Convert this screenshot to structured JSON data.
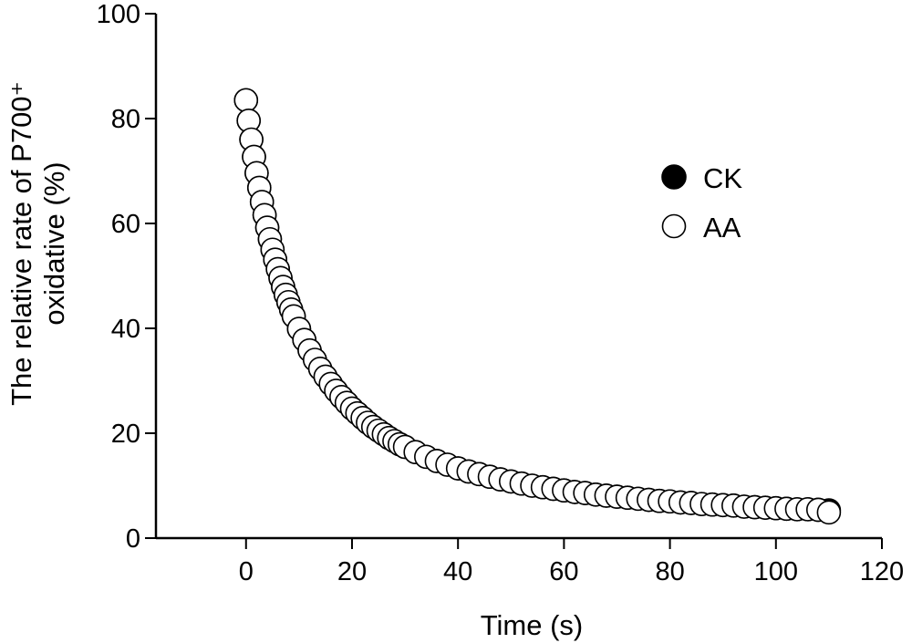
{
  "chart_data": {
    "type": "scatter",
    "title": "",
    "xlabel": "Time (s)",
    "ylabel_line1": "The relative rate of P700⁺",
    "ylabel_line2": "oxidative (%)",
    "xlim": [
      -17,
      120
    ],
    "ylim": [
      0,
      100
    ],
    "x_ticks": [
      0,
      20,
      40,
      60,
      80,
      100,
      120
    ],
    "y_ticks": [
      0,
      20,
      40,
      60,
      80,
      100
    ],
    "grid": false,
    "legend_position": "upper-right",
    "series": [
      {
        "name": "CK",
        "marker": "filled-circle",
        "color": "#000000",
        "x": [
          0,
          0.5,
          1,
          1.5,
          2,
          2.5,
          3,
          3.5,
          4,
          4.5,
          5,
          5.5,
          6,
          6.5,
          7,
          7.5,
          8,
          8.5,
          9,
          10,
          11,
          12,
          13,
          14,
          15,
          16,
          17,
          18,
          19,
          20,
          21,
          22,
          23,
          24,
          25,
          26,
          27,
          28,
          29,
          30,
          32,
          34,
          36,
          38,
          40,
          42,
          44,
          46,
          48,
          50,
          52,
          54,
          56,
          58,
          60,
          62,
          64,
          66,
          68,
          70,
          72,
          74,
          76,
          78,
          80,
          82,
          84,
          86,
          88,
          90,
          92,
          94,
          96,
          98,
          100,
          102,
          104,
          106,
          108,
          110
        ],
        "y": [
          83.5,
          79.6,
          76.0,
          72.7,
          69.6,
          66.8,
          64.1,
          61.6,
          59.2,
          57.0,
          55.0,
          53.1,
          51.3,
          49.6,
          47.9,
          46.4,
          45.0,
          43.6,
          42.3,
          39.9,
          37.8,
          35.8,
          34.0,
          32.3,
          30.8,
          29.4,
          28.1,
          26.9,
          25.8,
          24.7,
          23.8,
          22.9,
          22.0,
          21.2,
          20.5,
          19.8,
          19.1,
          18.5,
          17.9,
          17.4,
          16.4,
          15.5,
          14.7,
          14.0,
          13.3,
          12.7,
          12.2,
          11.7,
          11.2,
          10.8,
          10.4,
          10.0,
          9.7,
          9.4,
          9.1,
          8.8,
          8.6,
          8.3,
          8.1,
          7.9,
          7.7,
          7.5,
          7.3,
          7.1,
          7.0,
          6.8,
          6.7,
          6.5,
          6.4,
          6.3,
          6.2,
          6.0,
          5.9,
          5.8,
          5.7,
          5.6,
          5.5,
          5.5,
          5.4,
          5.3
        ]
      },
      {
        "name": "AA",
        "marker": "open-circle",
        "color": "#000000",
        "x": [
          0,
          0.5,
          1,
          1.5,
          2,
          2.5,
          3,
          3.5,
          4,
          4.5,
          5,
          5.5,
          6,
          6.5,
          7,
          7.5,
          8,
          8.5,
          9,
          10,
          11,
          12,
          13,
          14,
          15,
          16,
          17,
          18,
          19,
          20,
          21,
          22,
          23,
          24,
          25,
          26,
          27,
          28,
          29,
          30,
          32,
          34,
          36,
          38,
          40,
          42,
          44,
          46,
          48,
          50,
          52,
          54,
          56,
          58,
          60,
          62,
          64,
          66,
          68,
          70,
          72,
          74,
          76,
          78,
          80,
          82,
          84,
          86,
          88,
          90,
          92,
          94,
          96,
          98,
          100,
          102,
          104,
          106,
          108,
          110
        ],
        "y": [
          83.5,
          79.6,
          76.0,
          72.7,
          69.6,
          66.8,
          64.1,
          61.6,
          59.2,
          57.0,
          55.0,
          53.1,
          51.3,
          49.6,
          47.9,
          46.4,
          45.0,
          43.6,
          42.3,
          39.9,
          37.8,
          35.8,
          34.0,
          32.3,
          30.8,
          29.4,
          28.1,
          26.9,
          25.8,
          24.7,
          23.8,
          22.9,
          22.0,
          21.2,
          20.5,
          19.8,
          19.1,
          18.5,
          17.9,
          17.4,
          16.4,
          15.5,
          14.7,
          14.0,
          13.3,
          12.7,
          12.2,
          11.7,
          11.2,
          10.8,
          10.4,
          10.0,
          9.7,
          9.4,
          9.1,
          8.8,
          8.6,
          8.3,
          8.1,
          7.9,
          7.7,
          7.5,
          7.3,
          7.1,
          7.0,
          6.8,
          6.7,
          6.5,
          6.4,
          6.3,
          6.2,
          6.0,
          5.9,
          5.8,
          5.7,
          5.6,
          5.5,
          5.5,
          5.4,
          4.9
        ]
      }
    ]
  }
}
